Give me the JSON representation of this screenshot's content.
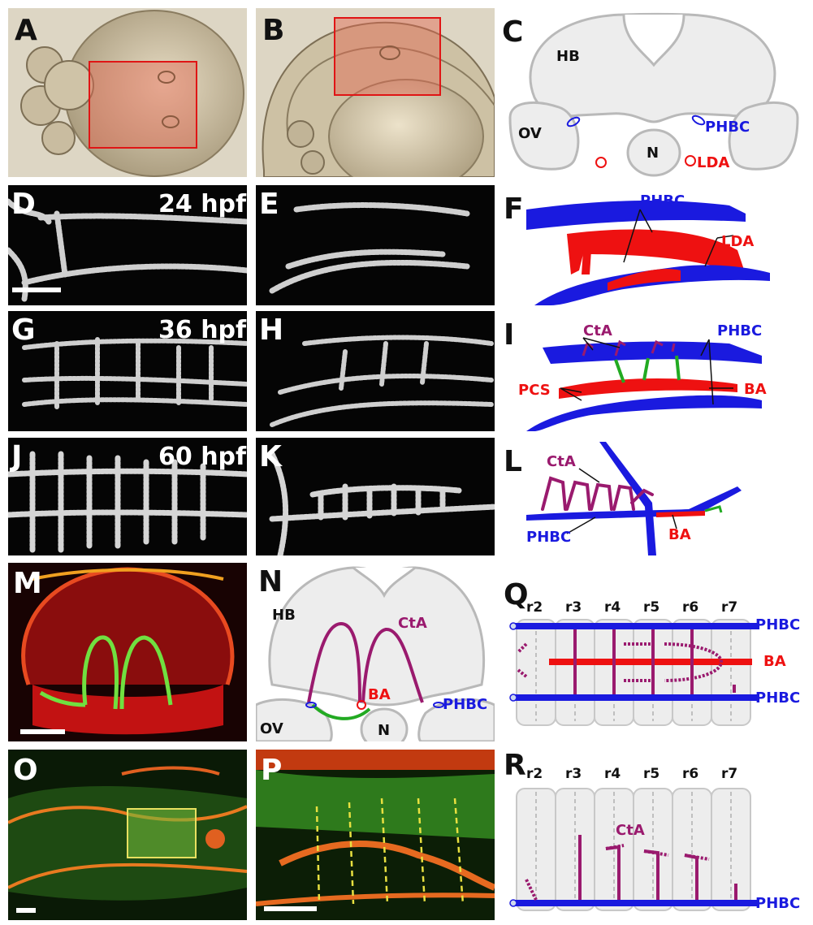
{
  "panels": {
    "A": "A",
    "B": "B",
    "C": "C",
    "D": "D",
    "E": "E",
    "F": "F",
    "G": "G",
    "H": "H",
    "I": "I",
    "J": "J",
    "K": "K",
    "L": "L",
    "M": "M",
    "N": "N",
    "O": "O",
    "P": "P",
    "Q": "Q",
    "R": "R"
  },
  "timepoints": {
    "t1": "24 hpf",
    "t2": "36 hpf",
    "t3": "60 hpf"
  },
  "labels": {
    "HB": "HB",
    "OV": "OV",
    "N": "N",
    "PHBC": "PHBC",
    "LDA": "LDA",
    "CtA": "CtA",
    "PCS": "PCS",
    "BA": "BA"
  },
  "rhombomeres": [
    "r2",
    "r3",
    "r4",
    "r5",
    "r6",
    "r7"
  ],
  "colors": {
    "blue": "#1a1adf",
    "red": "#ee1111",
    "purple": "#9a1a6e",
    "green": "#22aa22",
    "outline": "#b9b9b9",
    "fill": "#ededed"
  }
}
